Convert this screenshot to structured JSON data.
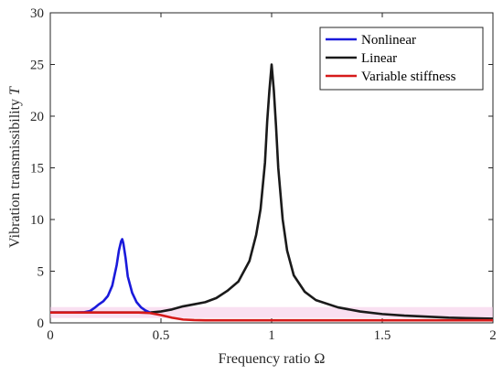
{
  "chart_data": {
    "type": "line",
    "xlabel": "Frequency ratio Ω",
    "ylabel": "Vibration transmissibility",
    "ylabel_symbol": "T",
    "xlim": [
      0,
      2
    ],
    "ylim": [
      0,
      30
    ],
    "xticks": [
      0,
      0.5,
      1,
      1.5,
      2
    ],
    "xtick_labels": [
      "0",
      "0.5",
      "1",
      "1.5",
      "2"
    ],
    "yticks": [
      0,
      5,
      10,
      15,
      20,
      25,
      30
    ],
    "ytick_labels": [
      "0",
      "5",
      "10",
      "15",
      "20",
      "25",
      "30"
    ],
    "grid": false,
    "legend_position": "top-right",
    "series": [
      {
        "name": "Nonlinear",
        "color": "#1a1adb",
        "x": [
          0,
          0.1,
          0.15,
          0.18,
          0.2,
          0.22,
          0.24,
          0.26,
          0.28,
          0.3,
          0.31,
          0.32,
          0.325,
          0.33,
          0.34,
          0.35,
          0.37,
          0.39,
          0.41,
          0.43,
          0.45
        ],
        "y": [
          1.0,
          1.0,
          1.02,
          1.15,
          1.45,
          1.8,
          2.1,
          2.6,
          3.6,
          5.6,
          7.0,
          7.9,
          8.1,
          7.7,
          6.3,
          4.5,
          2.9,
          2.0,
          1.5,
          1.2,
          1.0
        ]
      },
      {
        "name": "Linear",
        "color": "#1a1a1a",
        "x": [
          0,
          0.3,
          0.45,
          0.5,
          0.55,
          0.6,
          0.65,
          0.7,
          0.75,
          0.8,
          0.85,
          0.9,
          0.93,
          0.95,
          0.97,
          0.98,
          0.99,
          1.0,
          1.01,
          1.02,
          1.03,
          1.05,
          1.07,
          1.1,
          1.15,
          1.2,
          1.3,
          1.4,
          1.5,
          1.6,
          1.7,
          1.8,
          1.9,
          2.0
        ],
        "y": [
          1.0,
          1.0,
          1.0,
          1.1,
          1.3,
          1.6,
          1.8,
          2.0,
          2.4,
          3.1,
          4.0,
          6.0,
          8.5,
          11.0,
          15.5,
          19.5,
          22.5,
          25.0,
          22.5,
          19.0,
          15.0,
          10.0,
          7.0,
          4.6,
          3.0,
          2.2,
          1.5,
          1.1,
          0.85,
          0.7,
          0.6,
          0.5,
          0.45,
          0.4
        ]
      },
      {
        "name": "Variable stiffness",
        "color": "#d61a1a",
        "x": [
          0,
          0.35,
          0.4,
          0.45,
          0.5,
          0.55,
          0.6,
          0.65,
          0.7,
          0.8,
          1.0,
          1.2,
          1.4,
          1.6,
          1.8,
          2.0
        ],
        "y": [
          1.0,
          1.0,
          1.0,
          0.95,
          0.75,
          0.5,
          0.32,
          0.27,
          0.25,
          0.25,
          0.25,
          0.25,
          0.25,
          0.25,
          0.25,
          0.25
        ]
      }
    ]
  }
}
